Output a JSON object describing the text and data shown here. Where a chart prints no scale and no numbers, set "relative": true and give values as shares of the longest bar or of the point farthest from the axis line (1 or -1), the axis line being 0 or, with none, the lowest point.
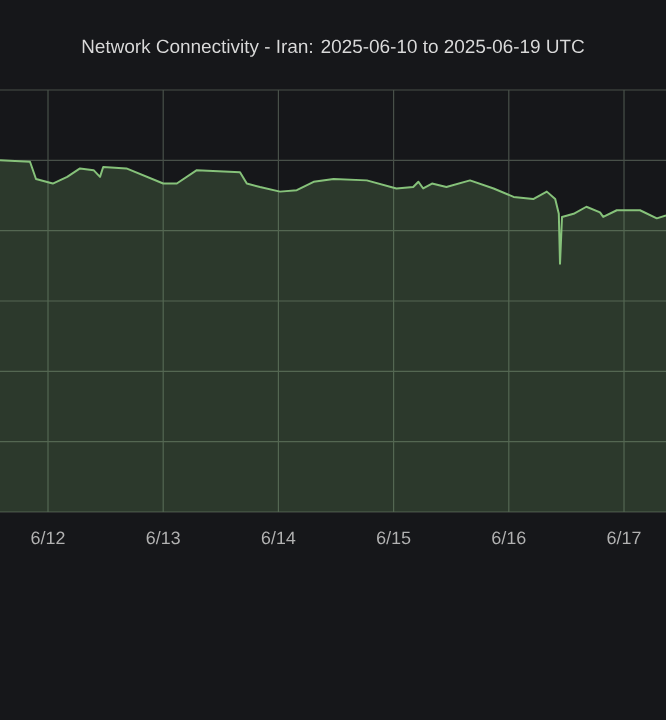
{
  "chart_data": {
    "type": "area",
    "title": "Network Connectivity - Iran: 2025-06-10 to 2025-06-19 UTC",
    "relative": true,
    "grid": true,
    "tick_labels": "x",
    "xlim": [
      "2025-06-11T14:00",
      "2025-06-17T08:45"
    ],
    "xticks": [
      {
        "value": "2025-06-12",
        "label": "6/12"
      },
      {
        "value": "2025-06-13",
        "label": "6/13"
      },
      {
        "value": "2025-06-14",
        "label": "6/14"
      },
      {
        "value": "2025-06-15",
        "label": "6/15"
      },
      {
        "value": "2025-06-16",
        "label": "6/16"
      },
      {
        "value": "2025-06-17",
        "label": "6/17"
      }
    ],
    "x": [
      "2025-06-11T14:00",
      "2025-06-11T20:15",
      "2025-06-11T21:30",
      "2025-06-12T01:00",
      "2025-06-12T04:00",
      "2025-06-12T06:40",
      "2025-06-12T09:30",
      "2025-06-12T10:50",
      "2025-06-12T11:30",
      "2025-06-12T16:20",
      "2025-06-13T00:00",
      "2025-06-13T02:50",
      "2025-06-13T07:00",
      "2025-06-13T16:00",
      "2025-06-13T17:25",
      "2025-06-13T20:10",
      "2025-06-14T00:20",
      "2025-06-14T03:50",
      "2025-06-14T07:20",
      "2025-06-14T11:30",
      "2025-06-14T18:25",
      "2025-06-15T00:35",
      "2025-06-15T04:05",
      "2025-06-15T05:10",
      "2025-06-15T06:10",
      "2025-06-15T08:00",
      "2025-06-15T11:00",
      "2025-06-15T15:55",
      "2025-06-15T20:50",
      "2025-06-16T01:00",
      "2025-06-16T05:05",
      "2025-06-16T07:55",
      "2025-06-16T09:40",
      "2025-06-16T10:25",
      "2025-06-16T10:40",
      "2025-06-16T11:05",
      "2025-06-16T13:30",
      "2025-06-16T16:10",
      "2025-06-16T19:00",
      "2025-06-16T19:40",
      "2025-06-16T22:30",
      "2025-06-17T03:20",
      "2025-06-17T06:50",
      "2025-06-17T08:45"
    ],
    "values": [
      1.0,
      0.996,
      0.947,
      0.934,
      0.953,
      0.977,
      0.972,
      0.953,
      0.981,
      0.977,
      0.934,
      0.934,
      0.972,
      0.966,
      0.934,
      0.924,
      0.911,
      0.915,
      0.939,
      0.947,
      0.943,
      0.92,
      0.924,
      0.939,
      0.92,
      0.934,
      0.924,
      0.943,
      0.92,
      0.896,
      0.89,
      0.911,
      0.89,
      0.848,
      0.706,
      0.839,
      0.848,
      0.868,
      0.852,
      0.839,
      0.858,
      0.858,
      0.835,
      0.843
    ],
    "color": "#86c27a"
  }
}
